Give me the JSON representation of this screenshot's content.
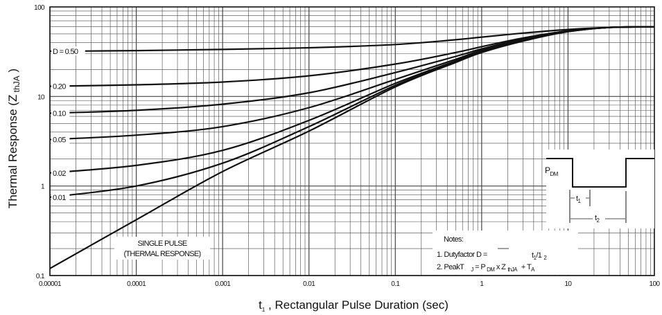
{
  "chart_data": {
    "type": "line",
    "xscale": "log",
    "yscale": "log",
    "xlim": [
      1e-05,
      100
    ],
    "ylim": [
      0.1,
      100
    ],
    "grid": true,
    "xlabel": {
      "main": "t",
      "sub": "1",
      "rest": " , Rectangular Pulse Duration (sec)"
    },
    "ylabel": {
      "main": "Thermal Response (Z",
      "sub": " thJA",
      "rest": " )"
    },
    "x_ticks": [
      {
        "value": 1e-05,
        "label": "0.00001"
      },
      {
        "value": 0.0001,
        "label": "0.0001"
      },
      {
        "value": 0.001,
        "label": "0.001"
      },
      {
        "value": 0.01,
        "label": "0.01"
      },
      {
        "value": 0.1,
        "label": "0.1"
      },
      {
        "value": 1,
        "label": "1"
      },
      {
        "value": 10,
        "label": "10"
      },
      {
        "value": 100,
        "label": "100"
      }
    ],
    "y_ticks": [
      {
        "value": 0.1,
        "label": "0.1"
      },
      {
        "value": 1,
        "label": "1"
      },
      {
        "value": 10,
        "label": "10"
      },
      {
        "value": 100,
        "label": "100"
      }
    ],
    "series": [
      {
        "label": "D = 0.50",
        "x": [
          1e-05,
          0.0001,
          0.001,
          0.01,
          0.1,
          0.5,
          1,
          3,
          10,
          30,
          100
        ],
        "y": [
          32,
          32.5,
          33.5,
          35,
          38,
          43,
          46,
          51,
          56,
          59,
          60
        ]
      },
      {
        "label": "0.20",
        "x": [
          1e-05,
          0.0001,
          0.001,
          0.01,
          0.1,
          0.5,
          1,
          3,
          10,
          30,
          100
        ],
        "y": [
          13,
          13.5,
          14.5,
          17,
          23,
          31,
          36,
          45,
          54,
          59,
          60
        ]
      },
      {
        "label": "0.10",
        "x": [
          1e-05,
          0.0001,
          0.001,
          0.01,
          0.1,
          0.5,
          1,
          3,
          10,
          30,
          100
        ],
        "y": [
          6.5,
          7,
          8.2,
          11,
          18.5,
          28,
          34,
          44,
          54,
          59,
          60
        ]
      },
      {
        "label": "0.05",
        "x": [
          1e-05,
          0.0001,
          0.001,
          0.01,
          0.1,
          0.5,
          1,
          3,
          10,
          30,
          100
        ],
        "y": [
          3.3,
          3.7,
          4.6,
          7.5,
          15.5,
          26,
          33,
          43,
          53.5,
          59,
          60
        ]
      },
      {
        "label": "0.02",
        "x": [
          1e-05,
          0.0001,
          0.001,
          0.01,
          0.1,
          0.5,
          1,
          3,
          10,
          30,
          100
        ],
        "y": [
          1.4,
          1.7,
          2.5,
          5.4,
          14,
          25,
          32,
          42.5,
          53,
          59,
          60
        ]
      },
      {
        "label": "0.01",
        "x": [
          1e-05,
          0.0001,
          0.001,
          0.01,
          0.1,
          0.5,
          1,
          3,
          10,
          30,
          100
        ],
        "y": [
          0.75,
          1.0,
          1.8,
          4.6,
          13.3,
          24.5,
          31.5,
          42,
          53,
          59,
          60
        ]
      },
      {
        "label": "",
        "x": [
          1e-05,
          0.0001,
          0.001,
          0.01,
          0.1,
          0.5,
          1,
          3,
          10,
          30,
          100
        ],
        "y": [
          0.12,
          0.42,
          1.45,
          4.1,
          12.8,
          24,
          31,
          41.5,
          53,
          59,
          60
        ]
      }
    ],
    "annotations": {
      "single_pulse": [
        "SINGLE PULSE",
        "(THERMAL RESPONSE)"
      ],
      "notes": {
        "title": "Notes:",
        "line1": {
          "text": "1. Dutyfactor D =",
          "frac": "t",
          "frac_sub1": "1",
          "frac_mid": "/1",
          "frac_sub2": "2"
        },
        "line2": {
          "a": "2. PeakT",
          "b": "J",
          "c": " = P",
          "d": "DM",
          "e": " x Z",
          "f": "thJA",
          "g": "+ T",
          "h": "A"
        }
      },
      "waveform": {
        "pdm_main": "P",
        "pdm_sub": "DM",
        "t1_main": "t",
        "t1_sub": "1",
        "t2_main": "t",
        "t2_sub": "2"
      }
    }
  }
}
